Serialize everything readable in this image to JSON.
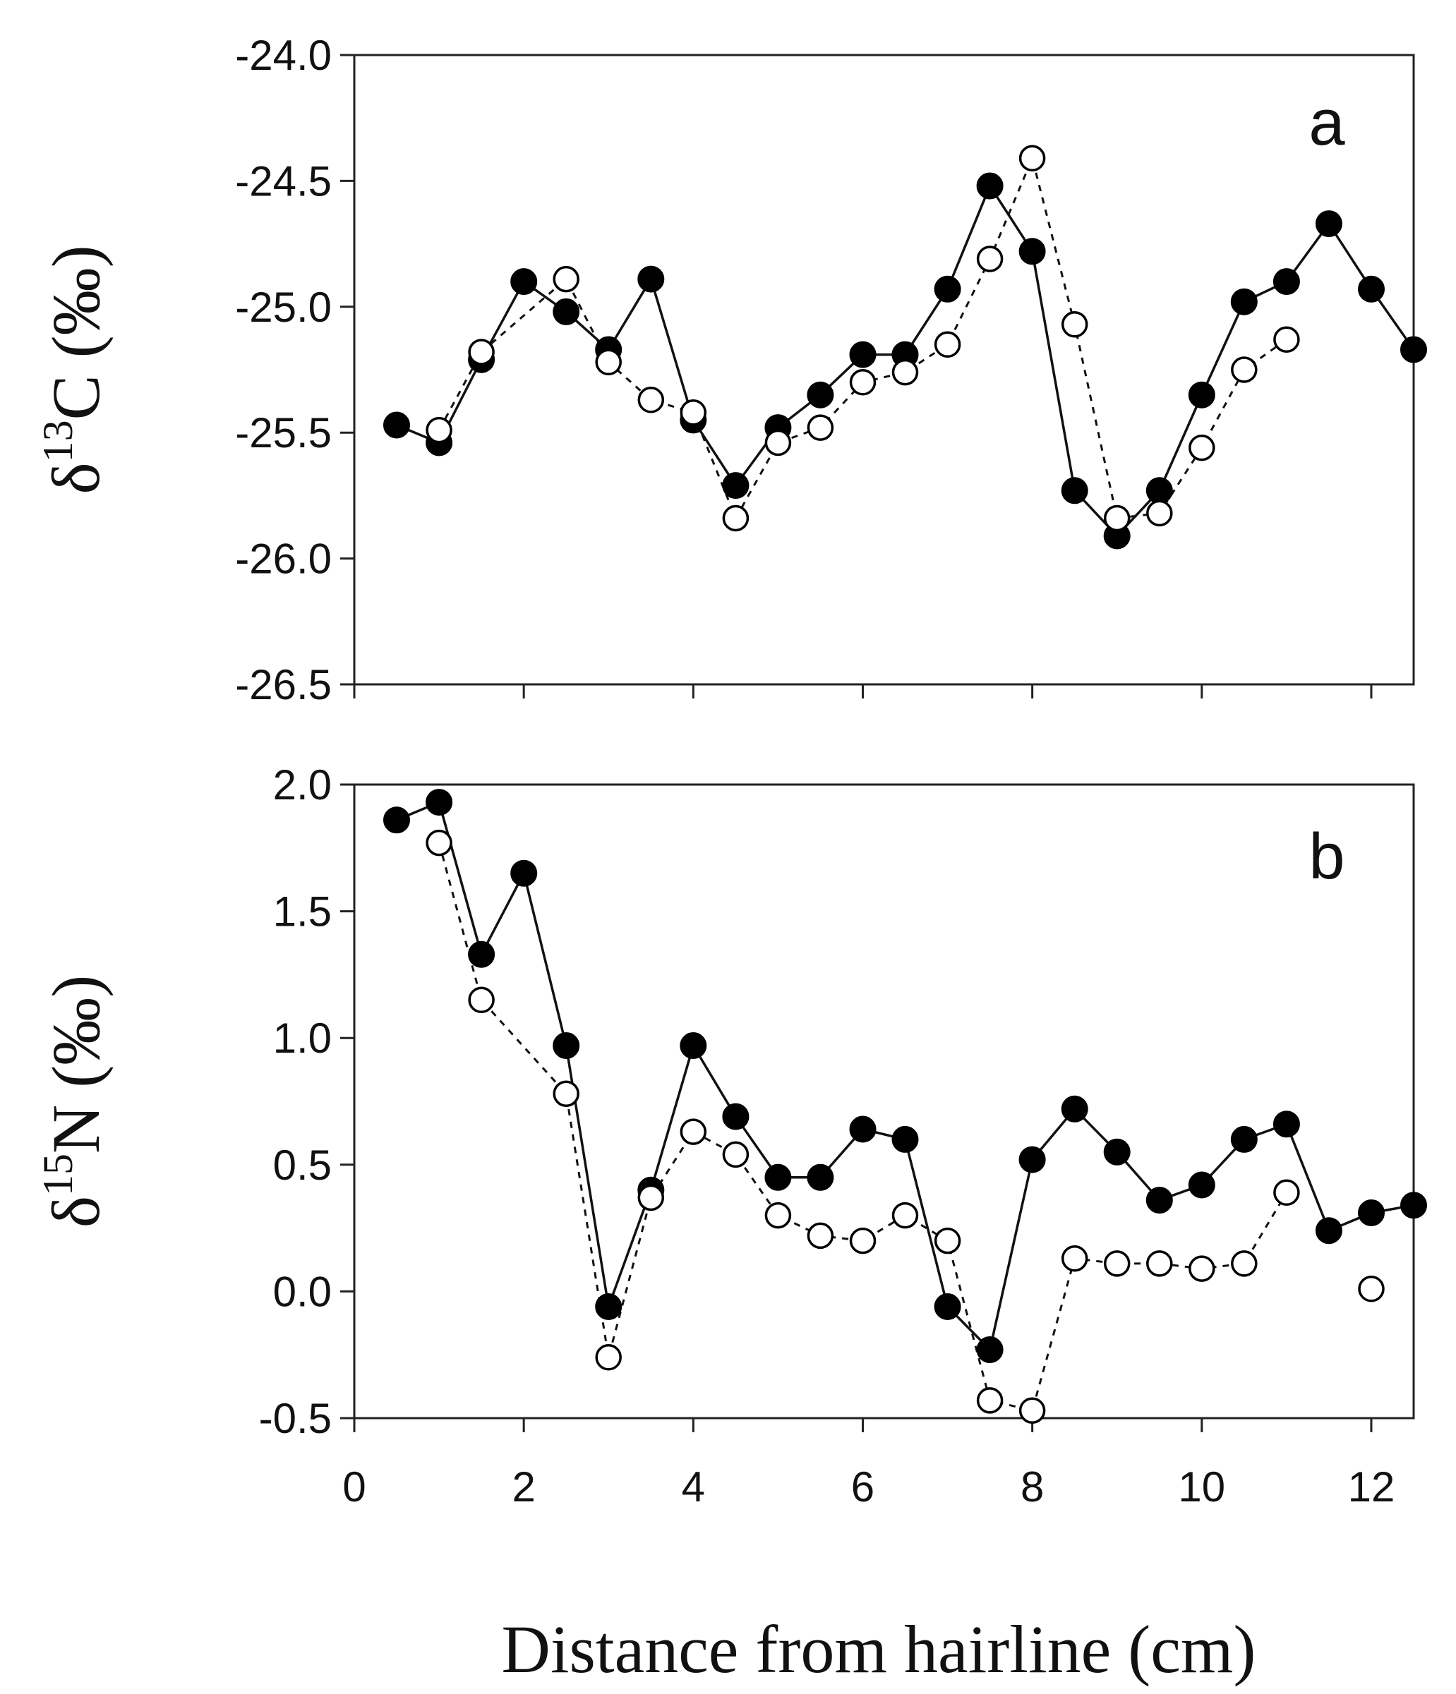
{
  "figure": {
    "xlabel": "Distance from hairline (cm)"
  },
  "chart_data": [
    {
      "type": "line",
      "panel_label": "a",
      "ylabel": {
        "prefix": "δ",
        "superscript": "13",
        "element": "C",
        "unit": " (‰)"
      },
      "xlim": [
        0,
        12.5
      ],
      "ylim": [
        -26.5,
        -24.0
      ],
      "x_ticks": [
        0,
        2,
        4,
        6,
        8,
        10,
        12
      ],
      "y_ticks": [
        -24.0,
        -24.5,
        -25.0,
        -25.5,
        -26.0,
        -26.5
      ],
      "y_tick_labels": [
        "-24.0",
        "-24.5",
        "-25.0",
        "-25.5",
        "-26.0",
        "-26.5"
      ],
      "series": [
        {
          "name": "filled",
          "marker": "filled-circle",
          "line": "solid",
          "x": [
            0.5,
            1.0,
            1.5,
            2.0,
            2.5,
            3.0,
            3.5,
            4.0,
            4.5,
            5.0,
            5.5,
            6.0,
            6.5,
            7.0,
            7.5,
            8.0,
            8.5,
            9.0,
            9.5,
            10.0,
            10.5,
            11.0,
            11.5,
            12.0,
            12.5
          ],
          "y": [
            -25.47,
            -25.54,
            -25.21,
            -24.9,
            -25.02,
            -25.17,
            -24.89,
            -25.45,
            -25.71,
            -25.48,
            -25.35,
            -25.19,
            -25.19,
            -24.93,
            -24.52,
            -24.78,
            -25.73,
            -25.91,
            -25.73,
            -25.35,
            -24.98,
            -24.9,
            -24.67,
            -24.93,
            -25.17
          ]
        },
        {
          "name": "open",
          "marker": "open-circle",
          "line": "dashed",
          "x": [
            1.0,
            1.5,
            2.5,
            3.0,
            3.5,
            4.0,
            4.5,
            5.0,
            5.5,
            6.0,
            6.5,
            7.0,
            7.5,
            8.0,
            8.5,
            9.0,
            9.5,
            10.0,
            10.5,
            11.0
          ],
          "y": [
            -25.49,
            -25.18,
            -24.89,
            -25.22,
            -25.37,
            -25.42,
            -25.84,
            -25.54,
            -25.48,
            -25.3,
            -25.26,
            -25.15,
            -24.81,
            -24.41,
            -25.07,
            -25.84,
            -25.82,
            -25.56,
            -25.25,
            -25.13
          ]
        }
      ]
    },
    {
      "type": "line",
      "panel_label": "b",
      "ylabel": {
        "prefix": "δ",
        "superscript": "15",
        "element": "N",
        "unit": " (‰)"
      },
      "xlim": [
        0,
        12.5
      ],
      "ylim": [
        -0.5,
        2.0
      ],
      "x_ticks": [
        0,
        2,
        4,
        6,
        8,
        10,
        12
      ],
      "x_tick_labels": [
        "0",
        "2",
        "4",
        "6",
        "8",
        "10",
        "12"
      ],
      "y_ticks": [
        2.0,
        1.5,
        1.0,
        0.5,
        0.0,
        -0.5
      ],
      "y_tick_labels": [
        "2.0",
        "1.5",
        "1.0",
        "0.5",
        "0.0",
        "-0.5"
      ],
      "series": [
        {
          "name": "filled",
          "marker": "filled-circle",
          "line": "solid",
          "x": [
            0.5,
            1.0,
            1.5,
            2.0,
            2.5,
            3.0,
            3.5,
            4.0,
            4.5,
            5.0,
            5.5,
            6.0,
            6.5,
            7.0,
            7.5,
            8.0,
            8.5,
            9.0,
            9.5,
            10.0,
            10.5,
            11.0,
            11.5,
            12.0,
            12.5
          ],
          "y": [
            1.86,
            1.93,
            1.33,
            1.65,
            0.97,
            -0.06,
            0.4,
            0.97,
            0.69,
            0.45,
            0.45,
            0.64,
            0.6,
            -0.06,
            -0.23,
            0.52,
            0.72,
            0.55,
            0.36,
            0.42,
            0.6,
            0.66,
            0.24,
            0.31,
            0.34
          ]
        },
        {
          "name": "open",
          "marker": "open-circle",
          "line": "dashed",
          "x": [
            1.0,
            1.5,
            2.5,
            3.0,
            3.5,
            4.0,
            4.5,
            5.0,
            5.5,
            6.0,
            6.5,
            7.0,
            7.5,
            8.0,
            8.5,
            9.0,
            9.5,
            10.0,
            10.5,
            11.0
          ],
          "y": [
            1.77,
            1.15,
            0.78,
            -0.26,
            0.37,
            0.63,
            0.54,
            0.3,
            0.22,
            0.2,
            0.3,
            0.2,
            -0.43,
            -0.47,
            0.13,
            0.11,
            0.11,
            0.09,
            0.11,
            0.39
          ]
        },
        {
          "name": "open-isolated",
          "marker": "open-circle",
          "line": "none",
          "x": [
            12.0
          ],
          "y": [
            0.01
          ]
        }
      ]
    }
  ]
}
